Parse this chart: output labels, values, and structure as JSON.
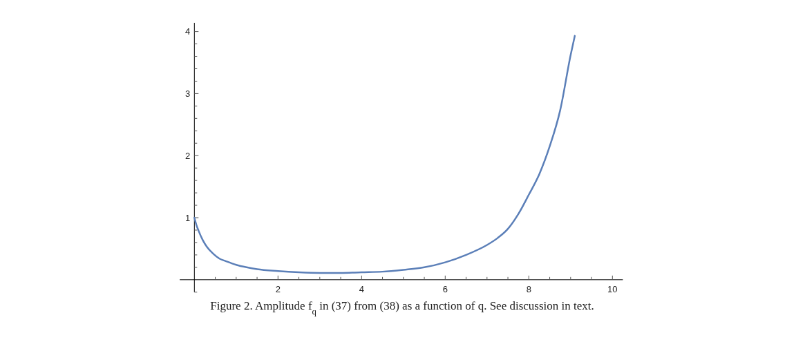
{
  "chart_data": {
    "type": "line",
    "xlim": [
      -0.35,
      10.25
    ],
    "ylim": [
      -0.2,
      4.14
    ],
    "xticks": [
      {
        "value": 0.5,
        "label": null
      },
      {
        "value": 1,
        "label": null
      },
      {
        "value": 1.5,
        "label": null
      },
      2,
      {
        "value": 2.5,
        "label": null
      },
      {
        "value": 3,
        "label": null
      },
      {
        "value": 3.5,
        "label": null
      },
      4,
      {
        "value": 4.5,
        "label": null
      },
      {
        "value": 5,
        "label": null
      },
      {
        "value": 5.5,
        "label": null
      },
      6,
      {
        "value": 6.5,
        "label": null
      },
      {
        "value": 7,
        "label": null
      },
      {
        "value": 7.5,
        "label": null
      },
      8,
      {
        "value": 8.5,
        "label": null
      },
      {
        "value": 9,
        "label": null
      },
      {
        "value": 9.5,
        "label": null
      },
      10
    ],
    "yticks": [
      {
        "value": -0.2,
        "label": null
      },
      {
        "value": 0.2,
        "label": null
      },
      {
        "value": 0.4,
        "label": null
      },
      {
        "value": 0.6,
        "label": null
      },
      {
        "value": 0.8,
        "label": null
      },
      1,
      {
        "value": 1.2,
        "label": null
      },
      {
        "value": 1.4,
        "label": null
      },
      {
        "value": 1.6,
        "label": null
      },
      {
        "value": 1.8,
        "label": null
      },
      2,
      {
        "value": 2.2,
        "label": null
      },
      {
        "value": 2.4,
        "label": null
      },
      {
        "value": 2.6,
        "label": null
      },
      {
        "value": 2.8,
        "label": null
      },
      3,
      {
        "value": 3.2,
        "label": null
      },
      {
        "value": 3.4,
        "label": null
      },
      {
        "value": 3.6,
        "label": null
      },
      {
        "value": 3.8,
        "label": null
      },
      4
    ],
    "series": [
      {
        "color": "#5b7fb8",
        "x": [
          0,
          0.05,
          0.1,
          0.2,
          0.3,
          0.45,
          0.6,
          0.75,
          1,
          1.25,
          1.5,
          2,
          2.5,
          3,
          3.5,
          4,
          4.5,
          5,
          5.5,
          6,
          6.5,
          7,
          7.25,
          7.5,
          7.75,
          8,
          8.25,
          8.5,
          8.75,
          9,
          9.1
        ],
        "values": [
          1,
          0.88,
          0.79,
          0.64,
          0.53,
          0.42,
          0.34,
          0.3,
          0.24,
          0.2,
          0.17,
          0.14,
          0.12,
          0.11,
          0.11,
          0.12,
          0.13,
          0.16,
          0.2,
          0.28,
          0.4,
          0.56,
          0.67,
          0.82,
          1.06,
          1.37,
          1.7,
          2.15,
          2.73,
          3.62,
          3.93
        ]
      }
    ],
    "grid": false,
    "marker": "none",
    "line_style": "solid",
    "annotations": [
      "Figure 2.  Amplitude f$_{q}$ in (37) from (38) as a function of q. See discussion in text."
    ]
  }
}
